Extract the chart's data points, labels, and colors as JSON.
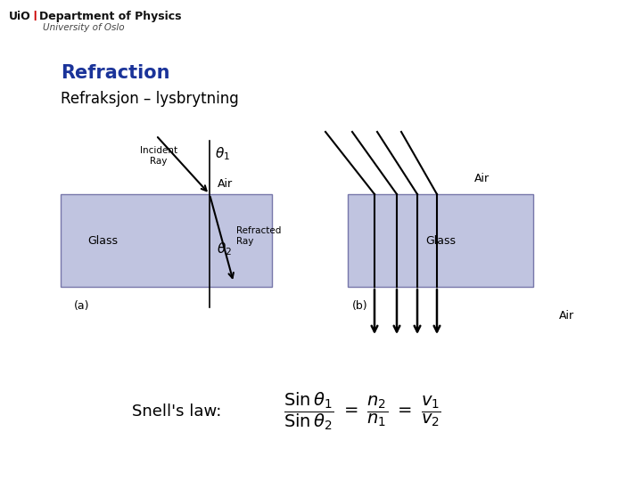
{
  "bg_color": "#ffffff",
  "title": "Refraction",
  "title_color": "#1a3399",
  "subtitle": "Refraksjon – lysbrytning",
  "subtitle_color": "#000000",
  "logo_line1": "UiO",
  "logo_line1b": "Department of Physics",
  "logo_line2": "University of Oslo",
  "snells_law_label": "Snell's law:",
  "glass_color": "#c0c4e0",
  "glass_edge_color": "#7777aa",
  "air_label_color": "#000000",
  "glass_label_color": "#000000",
  "formula_color": "#000000",
  "arrow_color": "#000000",
  "fig_width": 7.2,
  "fig_height": 5.4,
  "dpi": 100
}
